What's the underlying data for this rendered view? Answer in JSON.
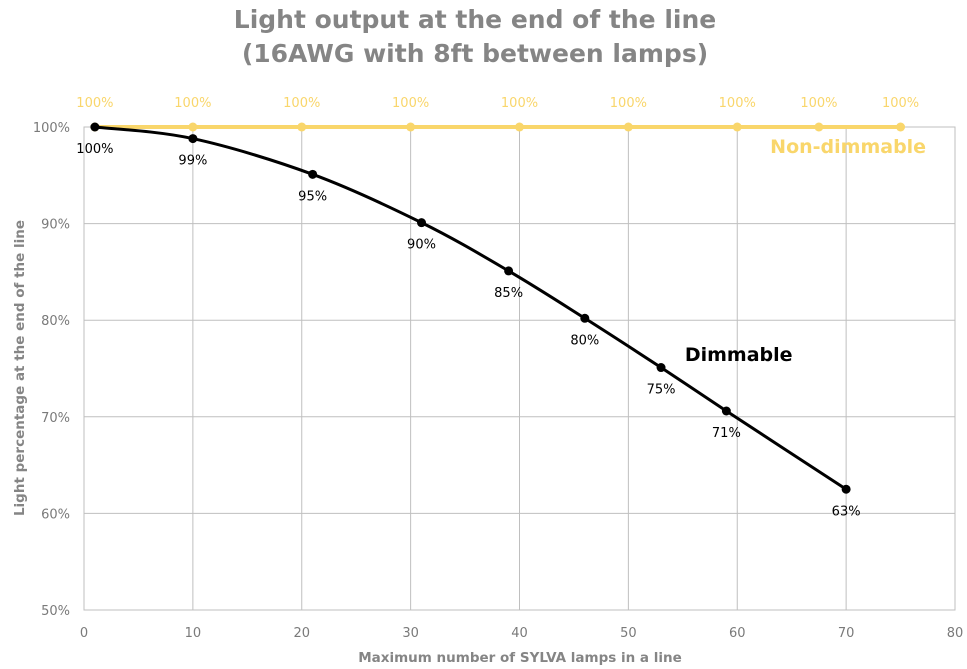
{
  "chart_data": {
    "type": "line",
    "title": [
      "Light output at the end of the line",
      "(16AWG with 8ft between lamps)"
    ],
    "xlabel": "Maximum number of SYLVA lamps in a line",
    "ylabel": "Light percentage at the end of the line",
    "xlim": [
      0,
      80
    ],
    "ylim": [
      50,
      100
    ],
    "x_ticks": [
      0,
      10,
      20,
      30,
      40,
      50,
      60,
      70,
      80
    ],
    "y_ticks": [
      50,
      60,
      70,
      80,
      90,
      100
    ],
    "y_tick_labels": [
      "50%",
      "60%",
      "70%",
      "80%",
      "90%",
      "100%"
    ],
    "grid": true,
    "legend": "inline labels",
    "series": [
      {
        "name": "Non-dimmable",
        "color": "#F9D66B",
        "x": [
          1,
          10,
          20,
          30,
          40,
          50,
          60,
          67.5,
          75
        ],
        "values": [
          100,
          100,
          100,
          100,
          100,
          100,
          100,
          100,
          100
        ],
        "labels": [
          "100%",
          "100%",
          "100%",
          "100%",
          "100%",
          "100%",
          "100%",
          "100%",
          "100%"
        ]
      },
      {
        "name": "Dimmable",
        "color": "#000000",
        "x": [
          1,
          10,
          21,
          31,
          39,
          46,
          53,
          59,
          70
        ],
        "values": [
          100,
          98.8,
          95.1,
          90.1,
          85.1,
          80.2,
          75.1,
          70.6,
          62.5
        ],
        "labels": [
          "100%",
          "99%",
          "95%",
          "90%",
          "85%",
          "80%",
          "75%",
          "71%",
          "63%"
        ]
      }
    ]
  }
}
